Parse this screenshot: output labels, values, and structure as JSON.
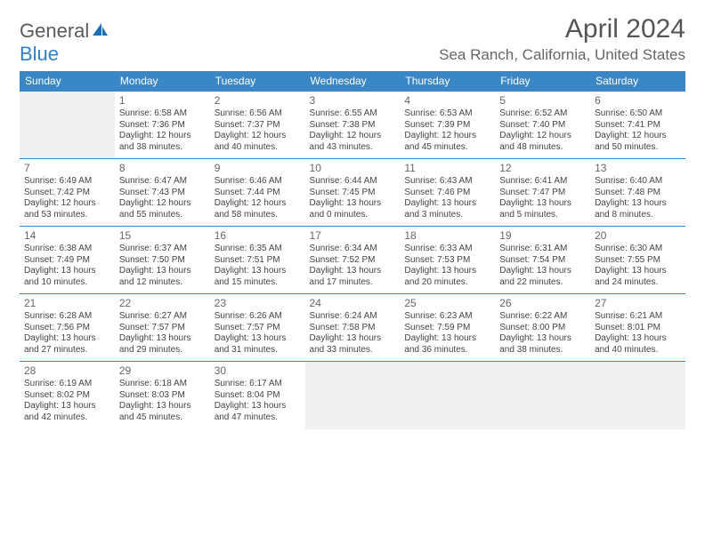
{
  "brand": {
    "line1": "General",
    "line2": "Blue"
  },
  "title": "April 2024",
  "location": "Sea Ranch, California, United States",
  "colors": {
    "accent": "#3a87c7",
    "header_bg": "#3a87c7",
    "header_text": "#ffffff",
    "border": "#3a87c7",
    "text": "#444444",
    "muted": "#666666",
    "blank_bg": "#f0f0f0",
    "logo_gray": "#5a5a5a",
    "logo_blue": "#2f7fc2"
  },
  "typography": {
    "month_title_pt": 30,
    "location_pt": 17,
    "weekday_pt": 12,
    "daynum_pt": 12,
    "body_pt": 10,
    "logo_pt": 22
  },
  "calendar": {
    "type": "table",
    "weekday_labels": [
      "Sunday",
      "Monday",
      "Tuesday",
      "Wednesday",
      "Thursday",
      "Friday",
      "Saturday"
    ],
    "weeks": [
      [
        null,
        {
          "n": "1",
          "sunrise": "6:58 AM",
          "sunset": "7:36 PM",
          "daylight": "12 hours and 38 minutes."
        },
        {
          "n": "2",
          "sunrise": "6:56 AM",
          "sunset": "7:37 PM",
          "daylight": "12 hours and 40 minutes."
        },
        {
          "n": "3",
          "sunrise": "6:55 AM",
          "sunset": "7:38 PM",
          "daylight": "12 hours and 43 minutes."
        },
        {
          "n": "4",
          "sunrise": "6:53 AM",
          "sunset": "7:39 PM",
          "daylight": "12 hours and 45 minutes."
        },
        {
          "n": "5",
          "sunrise": "6:52 AM",
          "sunset": "7:40 PM",
          "daylight": "12 hours and 48 minutes."
        },
        {
          "n": "6",
          "sunrise": "6:50 AM",
          "sunset": "7:41 PM",
          "daylight": "12 hours and 50 minutes."
        }
      ],
      [
        {
          "n": "7",
          "sunrise": "6:49 AM",
          "sunset": "7:42 PM",
          "daylight": "12 hours and 53 minutes."
        },
        {
          "n": "8",
          "sunrise": "6:47 AM",
          "sunset": "7:43 PM",
          "daylight": "12 hours and 55 minutes."
        },
        {
          "n": "9",
          "sunrise": "6:46 AM",
          "sunset": "7:44 PM",
          "daylight": "12 hours and 58 minutes."
        },
        {
          "n": "10",
          "sunrise": "6:44 AM",
          "sunset": "7:45 PM",
          "daylight": "13 hours and 0 minutes."
        },
        {
          "n": "11",
          "sunrise": "6:43 AM",
          "sunset": "7:46 PM",
          "daylight": "13 hours and 3 minutes."
        },
        {
          "n": "12",
          "sunrise": "6:41 AM",
          "sunset": "7:47 PM",
          "daylight": "13 hours and 5 minutes."
        },
        {
          "n": "13",
          "sunrise": "6:40 AM",
          "sunset": "7:48 PM",
          "daylight": "13 hours and 8 minutes."
        }
      ],
      [
        {
          "n": "14",
          "sunrise": "6:38 AM",
          "sunset": "7:49 PM",
          "daylight": "13 hours and 10 minutes."
        },
        {
          "n": "15",
          "sunrise": "6:37 AM",
          "sunset": "7:50 PM",
          "daylight": "13 hours and 12 minutes."
        },
        {
          "n": "16",
          "sunrise": "6:35 AM",
          "sunset": "7:51 PM",
          "daylight": "13 hours and 15 minutes."
        },
        {
          "n": "17",
          "sunrise": "6:34 AM",
          "sunset": "7:52 PM",
          "daylight": "13 hours and 17 minutes."
        },
        {
          "n": "18",
          "sunrise": "6:33 AM",
          "sunset": "7:53 PM",
          "daylight": "13 hours and 20 minutes."
        },
        {
          "n": "19",
          "sunrise": "6:31 AM",
          "sunset": "7:54 PM",
          "daylight": "13 hours and 22 minutes."
        },
        {
          "n": "20",
          "sunrise": "6:30 AM",
          "sunset": "7:55 PM",
          "daylight": "13 hours and 24 minutes."
        }
      ],
      [
        {
          "n": "21",
          "sunrise": "6:28 AM",
          "sunset": "7:56 PM",
          "daylight": "13 hours and 27 minutes."
        },
        {
          "n": "22",
          "sunrise": "6:27 AM",
          "sunset": "7:57 PM",
          "daylight": "13 hours and 29 minutes."
        },
        {
          "n": "23",
          "sunrise": "6:26 AM",
          "sunset": "7:57 PM",
          "daylight": "13 hours and 31 minutes."
        },
        {
          "n": "24",
          "sunrise": "6:24 AM",
          "sunset": "7:58 PM",
          "daylight": "13 hours and 33 minutes."
        },
        {
          "n": "25",
          "sunrise": "6:23 AM",
          "sunset": "7:59 PM",
          "daylight": "13 hours and 36 minutes."
        },
        {
          "n": "26",
          "sunrise": "6:22 AM",
          "sunset": "8:00 PM",
          "daylight": "13 hours and 38 minutes."
        },
        {
          "n": "27",
          "sunrise": "6:21 AM",
          "sunset": "8:01 PM",
          "daylight": "13 hours and 40 minutes."
        }
      ],
      [
        {
          "n": "28",
          "sunrise": "6:19 AM",
          "sunset": "8:02 PM",
          "daylight": "13 hours and 42 minutes."
        },
        {
          "n": "29",
          "sunrise": "6:18 AM",
          "sunset": "8:03 PM",
          "daylight": "13 hours and 45 minutes."
        },
        {
          "n": "30",
          "sunrise": "6:17 AM",
          "sunset": "8:04 PM",
          "daylight": "13 hours and 47 minutes."
        },
        null,
        null,
        null,
        null
      ]
    ],
    "labels": {
      "sunrise": "Sunrise:",
      "sunset": "Sunset:",
      "daylight": "Daylight:"
    }
  }
}
